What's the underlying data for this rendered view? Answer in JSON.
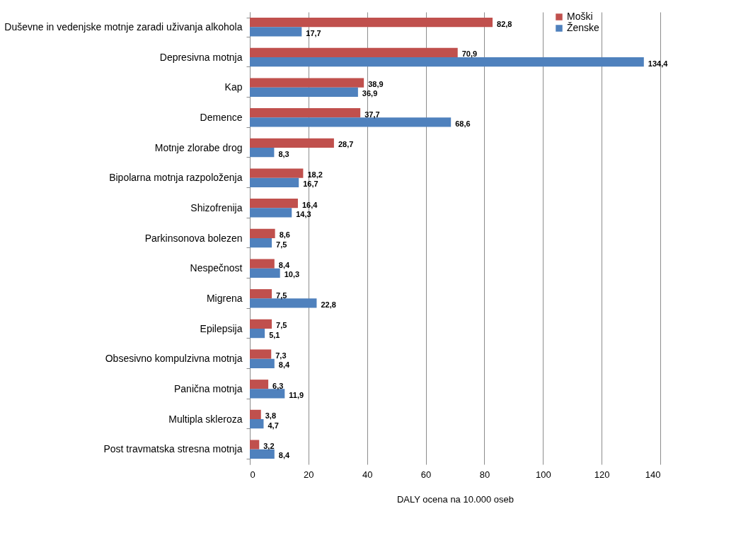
{
  "chart_data": {
    "type": "bar",
    "orientation": "horizontal",
    "xlabel": "DALY ocena na 10.000 oseb",
    "categories": [
      "Duševne in vedenjske motnje zaradi uživanja alkohola",
      "Depresivna motnja",
      "Kap",
      "Demence",
      "Motnje zlorabe drog",
      "Bipolarna motnja razpoloženja",
      "Shizofrenija",
      "Parkinsonova bolezen",
      "Nespečnost",
      "Migrena",
      "Epilepsija",
      "Obsesivno kompulzivna motnja",
      "Panična motnja",
      "Multipla skleroza",
      "Post travmatska stresna motnja"
    ],
    "series": [
      {
        "name": "Moški",
        "color": "#c0504d",
        "values": [
          82.8,
          70.9,
          38.9,
          37.7,
          28.7,
          18.2,
          16.4,
          8.6,
          8.4,
          7.5,
          7.5,
          7.3,
          6.3,
          3.8,
          3.2
        ],
        "value_labels": [
          "82,8",
          "70,9",
          "38,9",
          "37,7",
          "28,7",
          "18,2",
          "16,4",
          "8,6",
          "8,4",
          "7,5",
          "7,5",
          "7,3",
          "6,3",
          "3,8",
          "3,2"
        ]
      },
      {
        "name": "Ženske",
        "color": "#4f81bd",
        "values": [
          17.7,
          134.4,
          36.9,
          68.6,
          8.3,
          16.7,
          14.3,
          7.5,
          10.3,
          22.8,
          5.1,
          8.4,
          11.9,
          4.7,
          8.4
        ],
        "value_labels": [
          "17,7",
          "134,4",
          "36,9",
          "68,6",
          "8,3",
          "16,7",
          "14,3",
          "7,5",
          "10,3",
          "22,8",
          "5,1",
          "8,4",
          "11,9",
          "4,7",
          "8,4"
        ]
      }
    ],
    "xlim": [
      0,
      140
    ],
    "xticks": [
      0,
      20,
      40,
      60,
      80,
      100,
      120,
      140
    ],
    "grid": "x",
    "legend": "right"
  }
}
